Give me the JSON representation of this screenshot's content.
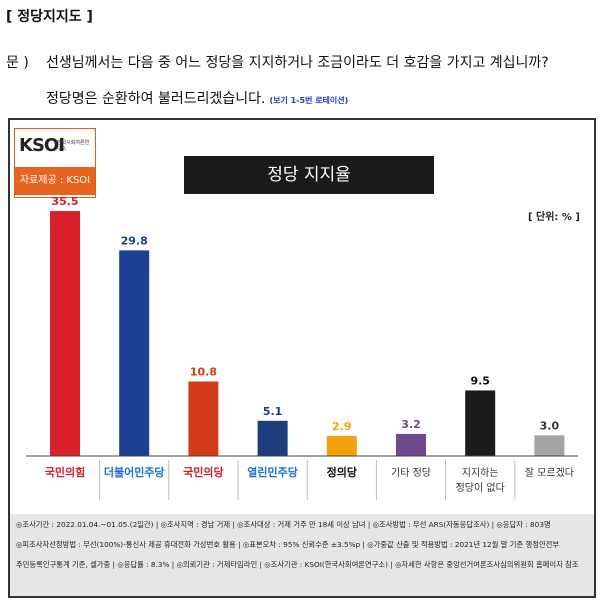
{
  "page": {
    "section_title": "[ 정당지지도 ]",
    "question_label": "문 )",
    "question_text": "선생님께서는 다음 중 어느 정당을 지지하거나 조금이라도 더 호감을 가지고 계십니까?",
    "question_line2": "정당명은 순환하여 불러드리겠습니다.",
    "rotation_note": "(보기 1-5번 로테이션)"
  },
  "logo": {
    "brand": "KSOI",
    "org_name": "한국사회여론연구소",
    "source_label": "자료제공 : KSOI"
  },
  "chart_data": {
    "type": "bar",
    "title": "정당 지지율",
    "unit": "[ 단위: % ]",
    "categories": [
      "국민의힘",
      "더불어민주당",
      "국민의당",
      "열린민주당",
      "정의당",
      "기타 정당",
      "지지하는 정당이 없다",
      "잘 모르겠다"
    ],
    "category_lines": [
      [
        "국민의힘"
      ],
      [
        "더불어민주당"
      ],
      [
        "국민의당"
      ],
      [
        "열린민주당"
      ],
      [
        "정의당"
      ],
      [
        "기타 정당"
      ],
      [
        "지지하는",
        "정당이 없다"
      ],
      [
        "잘 모르겠다"
      ]
    ],
    "values": [
      35.5,
      29.8,
      10.8,
      5.1,
      2.9,
      3.2,
      9.5,
      3.0
    ],
    "value_labels": [
      "35.5",
      "29.8",
      "10.8",
      "5.1",
      "2.9",
      "3.2",
      "9.5",
      "3.0"
    ],
    "colors": [
      "#d7202a",
      "#1c3f94",
      "#d43b1b",
      "#1f3c7c",
      "#f5a20a",
      "#6e4a8c",
      "#1b1b1b",
      "#a5a5a5"
    ],
    "label_colors": [
      "#d7202a",
      "#1b6fd0",
      "#c8202a",
      "#1b6fd0",
      "#111111",
      "#333333",
      "#333333",
      "#333333"
    ],
    "value_label_colors": [
      "#d7202a",
      "#1c3f94",
      "#d43b1b",
      "#1f3c7c",
      "#f5a20a",
      "#6e4a8c",
      "#111111",
      "#333333"
    ],
    "ylim": [
      0,
      40
    ],
    "grid": false,
    "legend": "none"
  },
  "footer": {
    "lines": [
      "◎조사기간 : 2022.01.04.~01.05.(2일간) | ◎조사지역 : 경남 거제 | ◎조사대상 : 거제 거주 만 18세 이상 남녀 | ◎조사방법 : 무선 ARS(자동응답조사) | ◎응답자 : 803명",
      "◎피조사자선정방법 : 무선(100%)-통신사 제공 휴대전화 가상번호 활용 | ◎표본오차 : 95% 신뢰수준 ±3.5%p | ◎가중값 산출 및 적용방법 : 2021년 12월 말 기준 행정안전부",
      "주민등록인구통계 기준, 셀가중 | ◎응답률 : 8.3% | ◎의뢰기관 : 거제타임라인 | ◎조사기관 : KSOI(한국사회여론연구소) | ◎자세한 사항은 중앙선거여론조사심의위원회 홈페이지 참조"
    ]
  }
}
